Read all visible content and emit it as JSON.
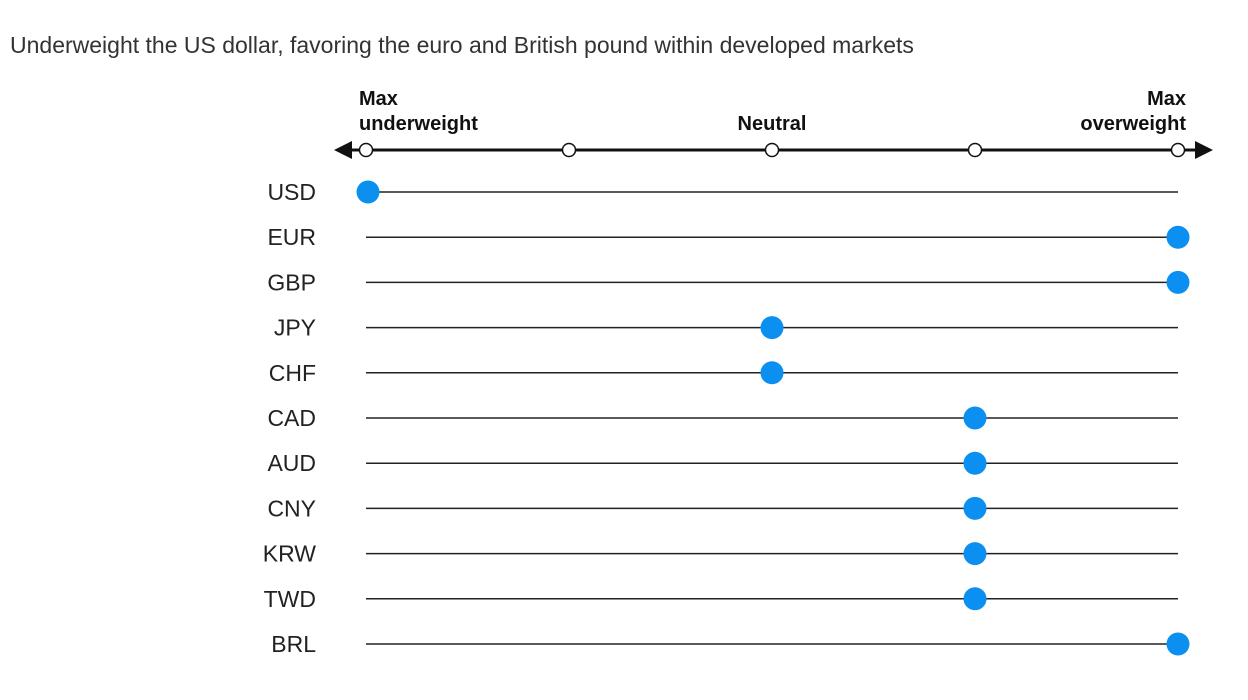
{
  "colors": {
    "marker": "#0b8ff0",
    "axis": "#111111",
    "row_line": "#222222"
  },
  "chart_data": {
    "type": "scatter",
    "title": "Underweight the US dollar, favoring the euro and British pound within developed markets",
    "scale_positions": 5,
    "scale_labels": [
      {
        "position": 0,
        "lines": [
          "Max",
          "underweight"
        ]
      },
      {
        "position": 2,
        "lines": [
          "Neutral"
        ]
      },
      {
        "position": 4,
        "lines": [
          "Max",
          "overweight"
        ]
      }
    ],
    "categories": [
      "USD",
      "EUR",
      "GBP",
      "JPY",
      "CHF",
      "CAD",
      "AUD",
      "CNY",
      "KRW",
      "TWD",
      "BRL"
    ],
    "values": [
      0,
      4,
      4,
      2,
      2,
      3,
      3,
      3,
      3,
      3,
      4
    ],
    "xlim": [
      0,
      4
    ]
  }
}
